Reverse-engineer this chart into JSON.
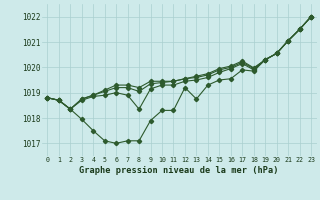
{
  "title": "Graphe pression niveau de la mer (hPa)",
  "bg_color": "#ceeaea",
  "grid_color": "#aacfcf",
  "line_color": "#2d5a2d",
  "ylim": [
    1016.5,
    1022.5
  ],
  "yticks": [
    1017,
    1018,
    1019,
    1020,
    1021,
    1022
  ],
  "x_labels": [
    "0",
    "1",
    "2",
    "3",
    "4",
    "5",
    "6",
    "7",
    "8",
    "9",
    "10",
    "11",
    "12",
    "13",
    "14",
    "15",
    "16",
    "17",
    "18",
    "19",
    "20",
    "21",
    "22",
    "23"
  ],
  "series": {
    "line1": [
      1018.8,
      1018.7,
      1018.35,
      1017.95,
      1017.5,
      1017.1,
      1017.0,
      1017.1,
      1017.1,
      1017.9,
      1018.3,
      1018.3,
      1019.2,
      1018.75,
      1019.3,
      1019.5,
      1019.55,
      1019.9,
      1019.85,
      1020.3,
      1020.55,
      1021.05,
      1021.5,
      1022.0
    ],
    "line2": [
      1018.8,
      1018.7,
      1018.35,
      1018.7,
      1018.85,
      1018.9,
      1019.0,
      1018.9,
      1018.35,
      1019.15,
      1019.3,
      1019.3,
      1019.45,
      1019.5,
      1019.6,
      1019.8,
      1019.95,
      1020.15,
      1019.9,
      1020.3,
      1020.55,
      1021.05,
      1021.5,
      1022.0
    ],
    "line3": [
      1018.8,
      1018.7,
      1018.35,
      1018.75,
      1018.9,
      1019.05,
      1019.2,
      1019.2,
      1019.05,
      1019.35,
      1019.4,
      1019.45,
      1019.55,
      1019.6,
      1019.7,
      1019.9,
      1020.0,
      1020.2,
      1019.95,
      1020.3,
      1020.55,
      1021.05,
      1021.5,
      1022.0
    ],
    "line4": [
      1018.8,
      1018.7,
      1018.35,
      1018.75,
      1018.9,
      1019.1,
      1019.3,
      1019.3,
      1019.2,
      1019.45,
      1019.45,
      1019.45,
      1019.55,
      1019.65,
      1019.75,
      1019.95,
      1020.05,
      1020.25,
      1019.98,
      1020.3,
      1020.55,
      1021.05,
      1021.5,
      1022.0
    ]
  }
}
